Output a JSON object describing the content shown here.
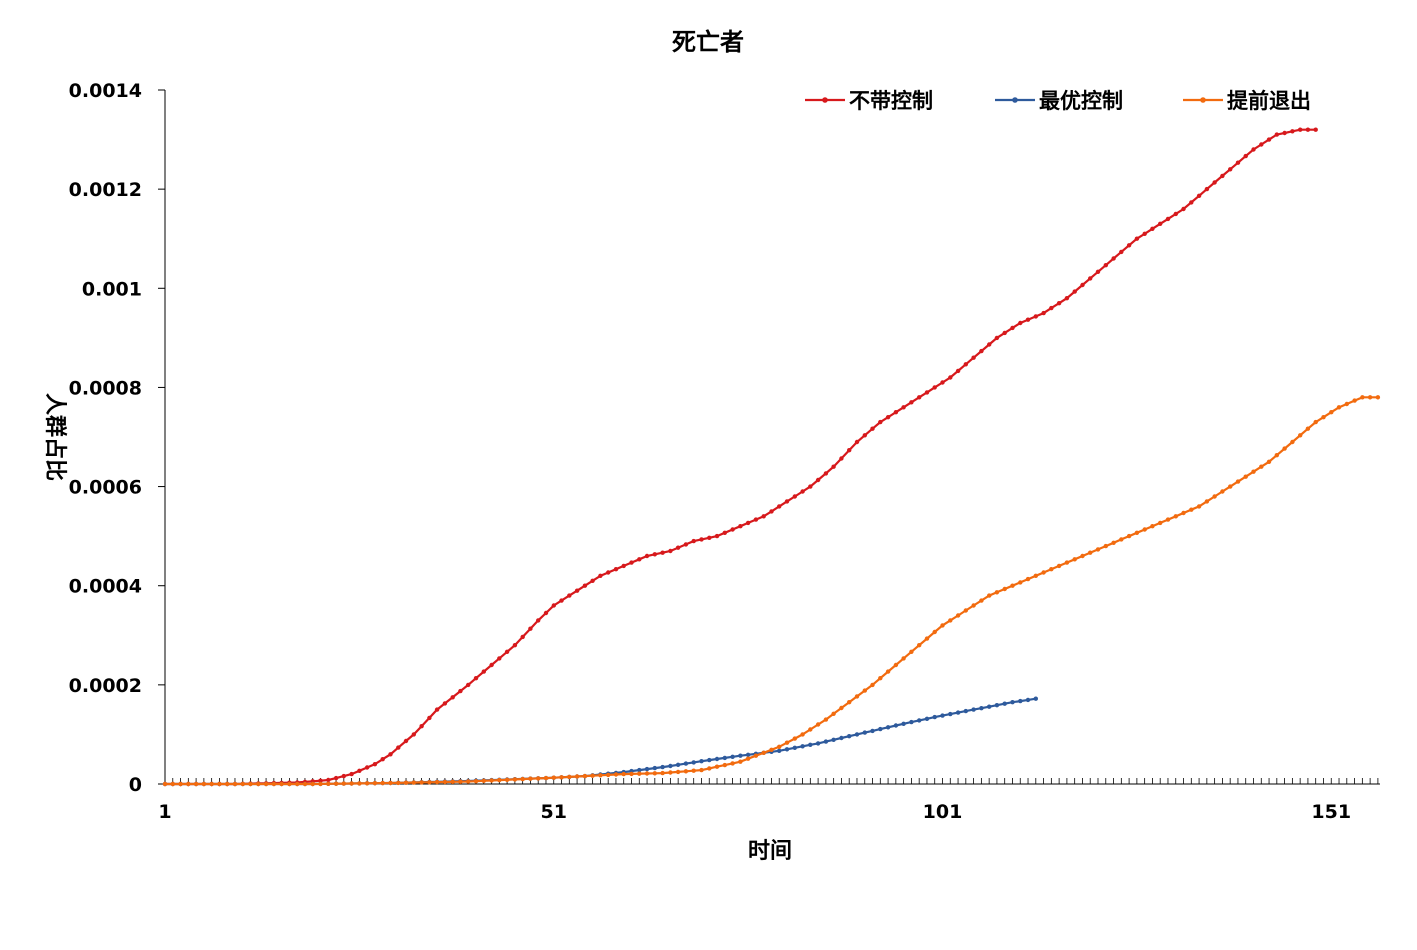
{
  "chart_data": {
    "type": "line",
    "title": "死亡者",
    "xlabel": "时间",
    "ylabel": "人群占比",
    "xlim": [
      1,
      157
    ],
    "ylim": [
      0,
      0.0014
    ],
    "x_ticks": [
      "1",
      "51",
      "101",
      "151"
    ],
    "y_ticks": [
      "0",
      "0.0002",
      "0.0004",
      "0.0006",
      "0.0008",
      "0.001",
      "0.0012",
      "0.0014"
    ],
    "legend_position": "top-right",
    "grid": false,
    "series": [
      {
        "name": "不带控制",
        "color": "#D7191C",
        "points": [
          [
            1,
            0
          ],
          [
            10,
            0
          ],
          [
            18,
            3e-06
          ],
          [
            22,
            8e-06
          ],
          [
            25,
            2e-05
          ],
          [
            28,
            4e-05
          ],
          [
            30,
            6e-05
          ],
          [
            33,
            0.0001
          ],
          [
            36,
            0.00015
          ],
          [
            40,
            0.0002
          ],
          [
            43,
            0.00024
          ],
          [
            46,
            0.00028
          ],
          [
            49,
            0.00033
          ],
          [
            51,
            0.00036
          ],
          [
            54,
            0.00039
          ],
          [
            57,
            0.00042
          ],
          [
            60,
            0.00044
          ],
          [
            63,
            0.00046
          ],
          [
            66,
            0.00047
          ],
          [
            69,
            0.00049
          ],
          [
            72,
            0.0005
          ],
          [
            75,
            0.00052
          ],
          [
            78,
            0.00054
          ],
          [
            81,
            0.00057
          ],
          [
            84,
            0.0006
          ],
          [
            87,
            0.00064
          ],
          [
            90,
            0.00069
          ],
          [
            93,
            0.00073
          ],
          [
            96,
            0.00076
          ],
          [
            99,
            0.00079
          ],
          [
            102,
            0.00082
          ],
          [
            105,
            0.00086
          ],
          [
            108,
            0.0009
          ],
          [
            111,
            0.00093
          ],
          [
            114,
            0.00095
          ],
          [
            117,
            0.00098
          ],
          [
            120,
            0.00102
          ],
          [
            123,
            0.00106
          ],
          [
            126,
            0.0011
          ],
          [
            129,
            0.00113
          ],
          [
            132,
            0.00116
          ],
          [
            135,
            0.0012
          ],
          [
            138,
            0.00124
          ],
          [
            141,
            0.00128
          ],
          [
            144,
            0.00131
          ],
          [
            147,
            0.00132
          ],
          [
            149,
            0.00132
          ]
        ]
      },
      {
        "name": "最优控制",
        "color": "#2E5A9C",
        "points": [
          [
            1,
            0
          ],
          [
            20,
            0
          ],
          [
            30,
            2e-06
          ],
          [
            40,
            6e-06
          ],
          [
            50,
            1.2e-05
          ],
          [
            55,
            1.6e-05
          ],
          [
            60,
            2.4e-05
          ],
          [
            65,
            3.4e-05
          ],
          [
            70,
            4.6e-05
          ],
          [
            75,
            5.7e-05
          ],
          [
            80,
            6.7e-05
          ],
          [
            85,
            8.2e-05
          ],
          [
            90,
            0.0001
          ],
          [
            95,
            0.000118
          ],
          [
            100,
            0.000135
          ],
          [
            105,
            0.00015
          ],
          [
            110,
            0.000165
          ],
          [
            113,
            0.000172
          ]
        ]
      },
      {
        "name": "提前退出",
        "color": "#F26B0F",
        "points": [
          [
            1,
            0
          ],
          [
            20,
            0
          ],
          [
            30,
            2e-06
          ],
          [
            40,
            5e-06
          ],
          [
            50,
            1.2e-05
          ],
          [
            55,
            1.6e-05
          ],
          [
            60,
            2e-05
          ],
          [
            65,
            2.2e-05
          ],
          [
            70,
            2.8e-05
          ],
          [
            75,
            4.5e-05
          ],
          [
            80,
            7.5e-05
          ],
          [
            83,
            0.0001
          ],
          [
            86,
            0.00013
          ],
          [
            89,
            0.000165
          ],
          [
            92,
            0.0002
          ],
          [
            95,
            0.00024
          ],
          [
            98,
            0.00028
          ],
          [
            101,
            0.00032
          ],
          [
            104,
            0.00035
          ],
          [
            107,
            0.00038
          ],
          [
            110,
            0.0004
          ],
          [
            113,
            0.00042
          ],
          [
            116,
            0.00044
          ],
          [
            119,
            0.00046
          ],
          [
            122,
            0.00048
          ],
          [
            125,
            0.0005
          ],
          [
            128,
            0.00052
          ],
          [
            131,
            0.00054
          ],
          [
            134,
            0.00056
          ],
          [
            137,
            0.00059
          ],
          [
            140,
            0.00062
          ],
          [
            143,
            0.00065
          ],
          [
            146,
            0.00069
          ],
          [
            149,
            0.00073
          ],
          [
            152,
            0.00076
          ],
          [
            155,
            0.00078
          ],
          [
            157,
            0.00078
          ]
        ]
      }
    ]
  }
}
